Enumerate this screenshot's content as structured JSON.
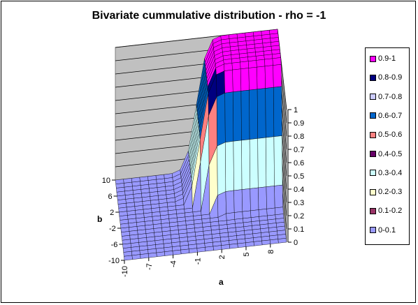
{
  "chart_data": {
    "type": "surface",
    "title": "Bivariate cummulative distribution - rho = -1",
    "xlabel": "a",
    "ylabel": "b",
    "zlim": [
      0,
      1
    ],
    "x_ticks": [
      "-10",
      "-7",
      "-4",
      "-1",
      "2",
      "5",
      "8"
    ],
    "y_ticks": [
      "-10",
      "-6",
      "-2",
      "2",
      "6",
      "10"
    ],
    "z_ticks": [
      "0",
      "0.1",
      "0.2",
      "0.3",
      "0.4",
      "0.5",
      "0.6",
      "0.7",
      "0.8",
      "0.9",
      "1"
    ],
    "series": [
      {
        "name": "0.9-1",
        "color": "#ff00ff"
      },
      {
        "name": "0.8-0.9",
        "color": "#000080"
      },
      {
        "name": "0.7-0.8",
        "color": "#ccccff"
      },
      {
        "name": "0.6-0.7",
        "color": "#0066cc"
      },
      {
        "name": "0.5-0.6",
        "color": "#ff8080"
      },
      {
        "name": "0.4-0.5",
        "color": "#660066"
      },
      {
        "name": "0.3-0.4",
        "color": "#ccffff"
      },
      {
        "name": "0.2-0.3",
        "color": "#ffffcc"
      },
      {
        "name": "0.1-0.2",
        "color": "#993366"
      },
      {
        "name": "0-0.1",
        "color": "#9999ff"
      }
    ],
    "legend_position": "right"
  }
}
